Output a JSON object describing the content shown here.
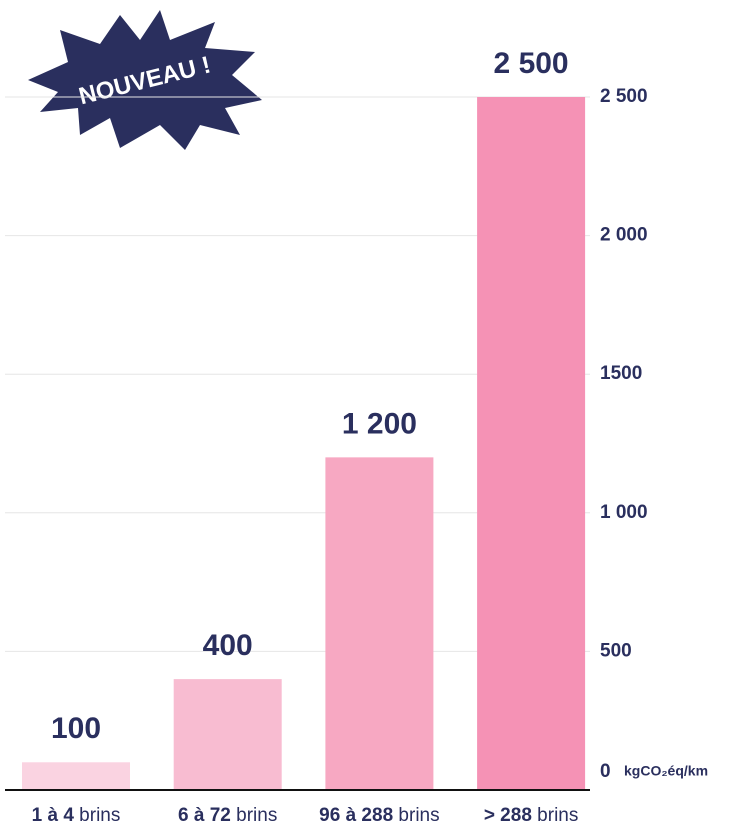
{
  "chart_data": {
    "type": "bar",
    "categories": [
      "1 à 4",
      "6 à 72",
      "96 à 288",
      "> 288"
    ],
    "category_unit": "brins",
    "values": [
      100,
      400,
      1200,
      2500
    ],
    "value_labels": [
      "100",
      "400",
      "1 200",
      "2 500"
    ],
    "colors": [
      "#fad3e1",
      "#f8bcd1",
      "#f7a8c2",
      "#f592b5"
    ],
    "ylim": [
      0,
      2500
    ],
    "yticks": [
      0,
      {
        "value": 500,
        "label": "500"
      },
      {
        "value": 1000,
        "label": "1 000"
      },
      1500,
      {
        "value": 2000,
        "label": "2 000"
      },
      {
        "value": 2500,
        "label": "2 500"
      }
    ],
    "y_unit": "kgCO₂éq/km",
    "badge": "NOUVEAU !",
    "grid": true
  }
}
